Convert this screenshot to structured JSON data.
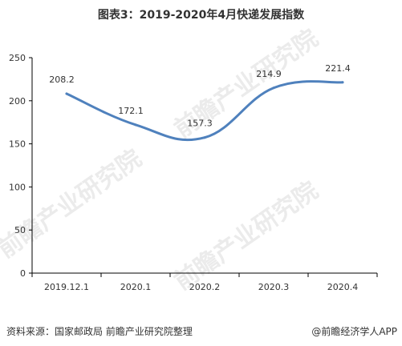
{
  "title": "图表3：2019-2020年4月快递发展指数",
  "footer": {
    "source": "资料来源：国家邮政局 前瞻产业研究院整理",
    "brand": "@前瞻经济学人APP"
  },
  "watermark": {
    "text": "前瞻产业研究院"
  },
  "colors": {
    "line": "#4f81bd",
    "axis": "#000000",
    "grid": "#d9d9d9"
  },
  "chart_data": {
    "type": "line",
    "title": "图表3：2019-2020年4月快递发展指数",
    "xlabel": "",
    "ylabel": "",
    "categories": [
      "2019.12.1",
      "2020.1",
      "2020.2",
      "2020.3",
      "2020.4"
    ],
    "values": [
      208.2,
      172.1,
      157.3,
      214.9,
      221.4
    ],
    "data_labels": [
      "208.2",
      "172.1",
      "157.3",
      "214.9",
      "221.4"
    ],
    "ylim": [
      0,
      250
    ],
    "yticks": [
      "0",
      "50",
      "100",
      "150",
      "200",
      "250"
    ],
    "grid": false,
    "legend": "none",
    "smooth": true
  }
}
